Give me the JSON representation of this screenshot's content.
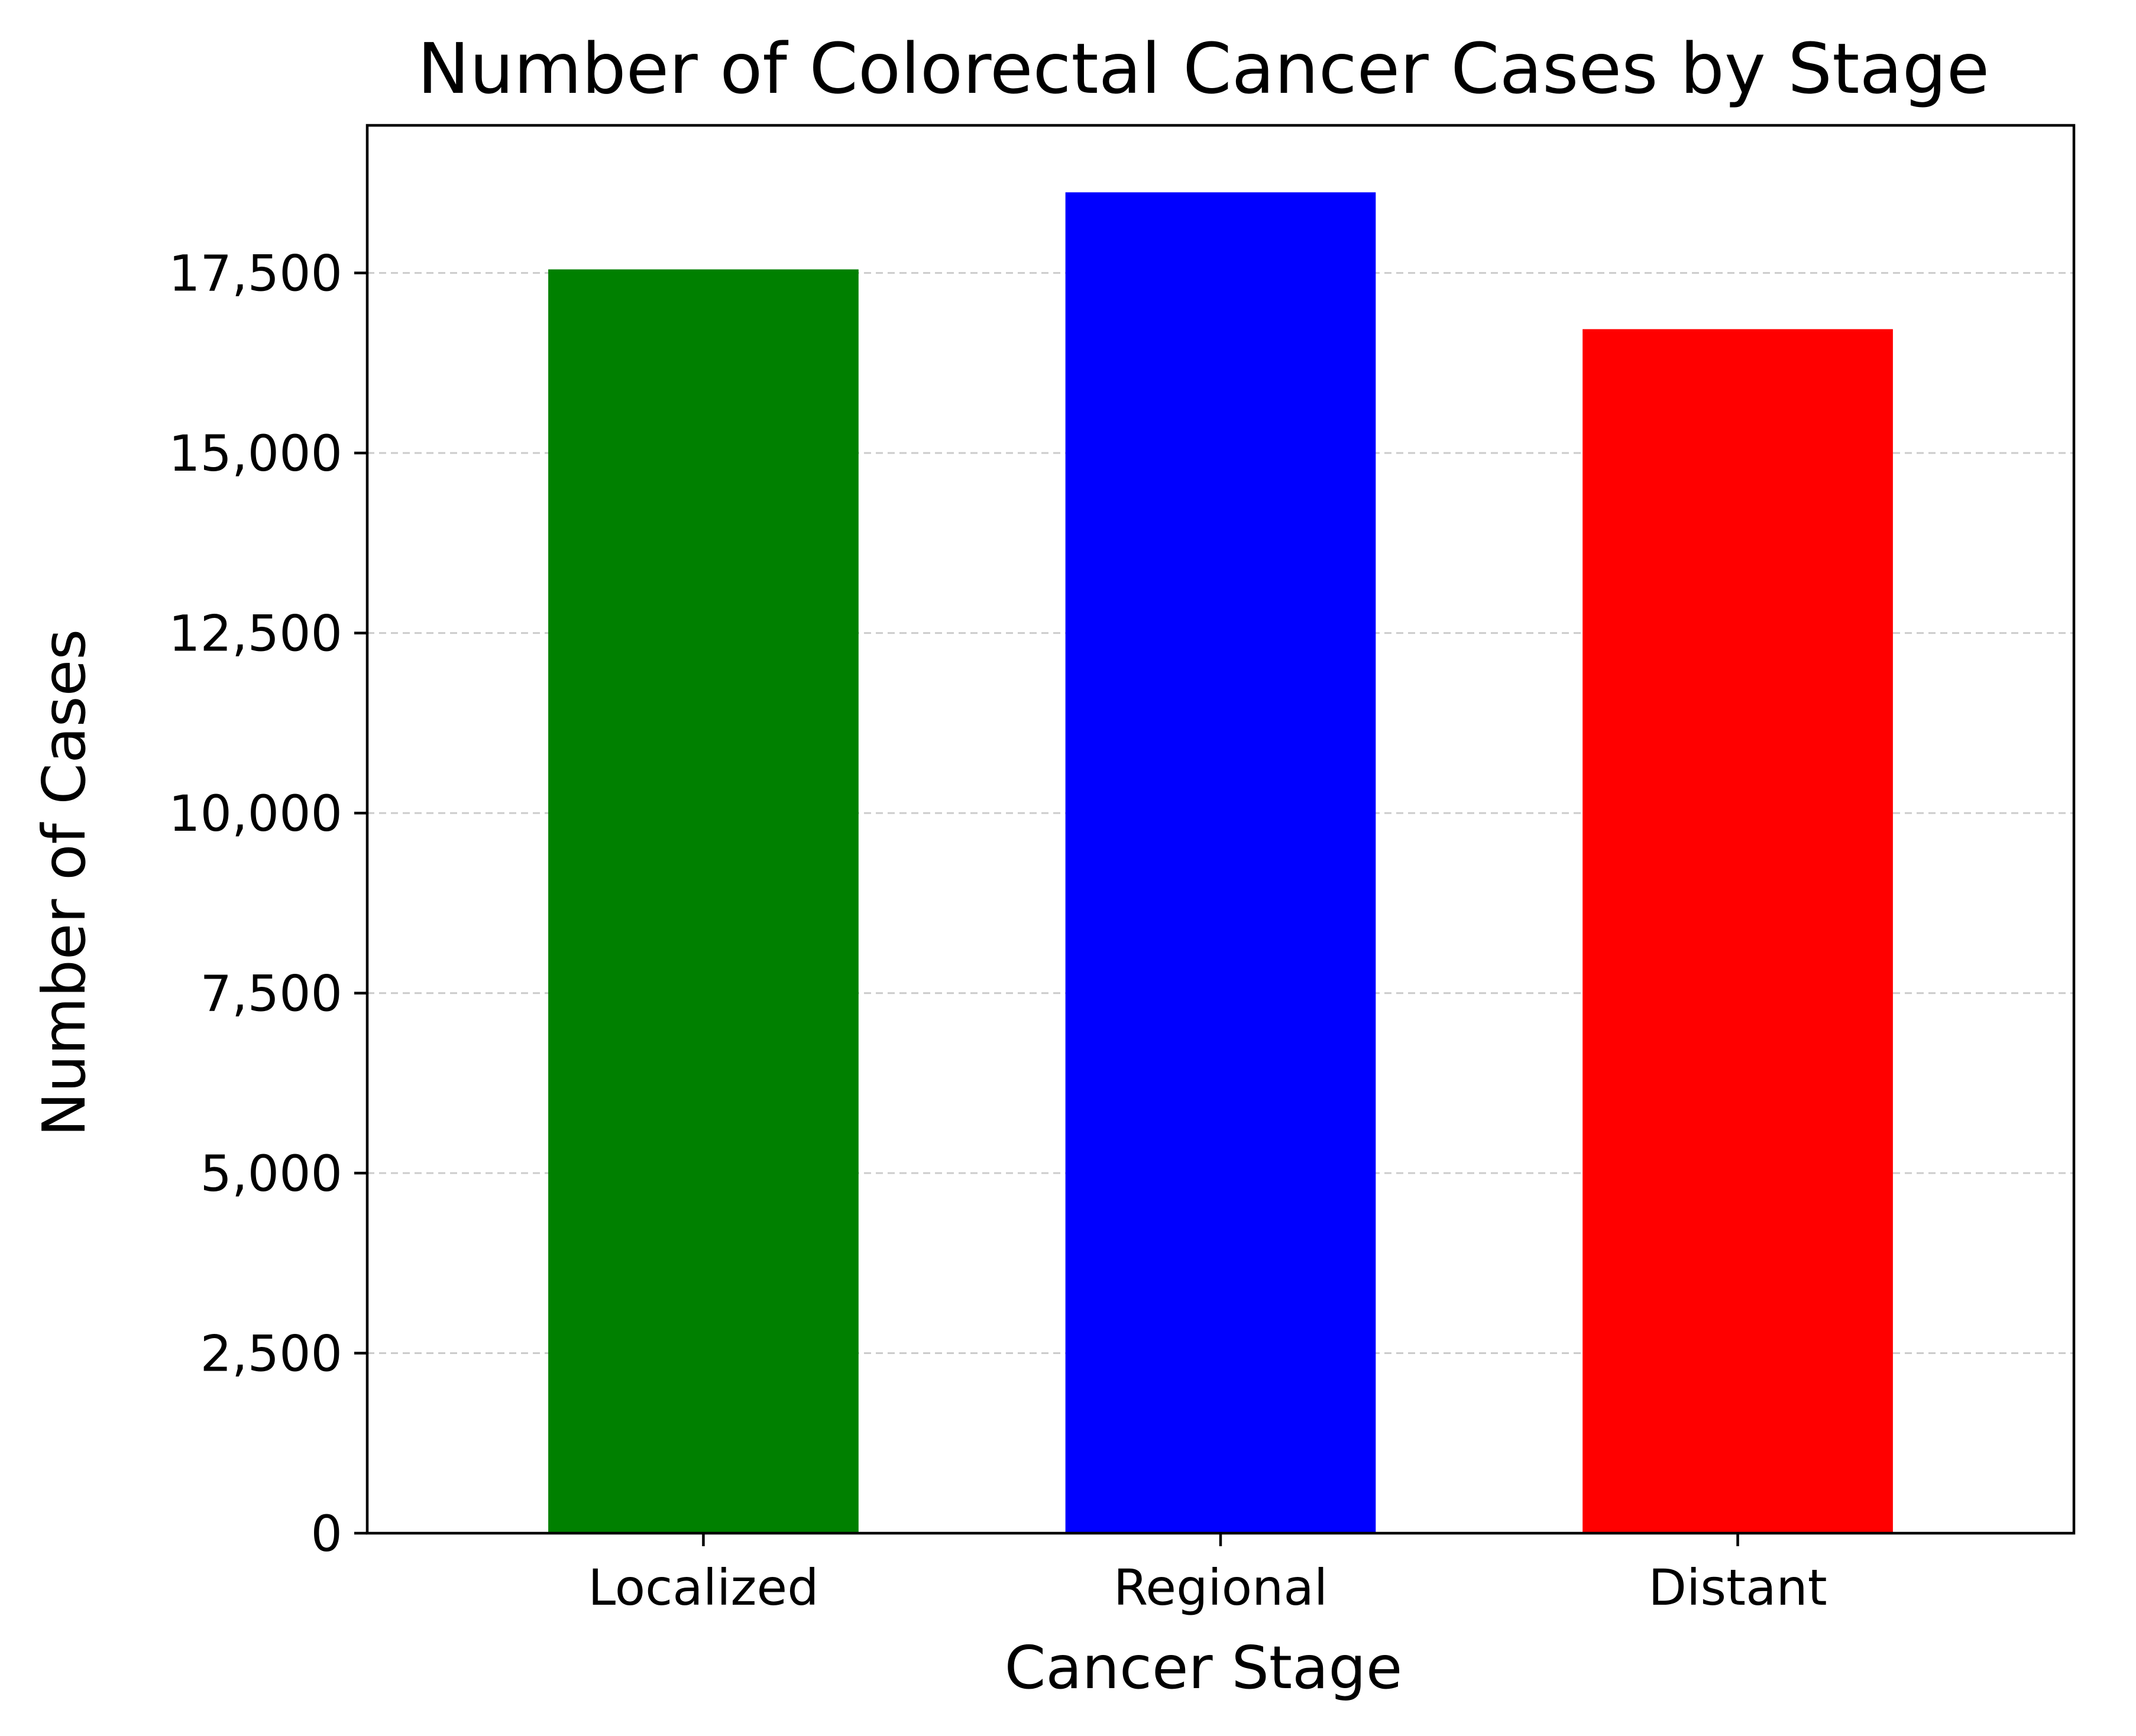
{
  "chart_data": {
    "type": "bar",
    "title": "Number of Colorectal Cancer Cases by Stage",
    "xlabel": "Cancer Stage",
    "ylabel": "Number of Cases",
    "categories": [
      "Localized",
      "Regional",
      "Distant"
    ],
    "values": [
      17550,
      18620,
      16720
    ],
    "colors": [
      "#008000",
      "#0000ff",
      "#ff0000"
    ],
    "ylim": [
      0,
      19550
    ],
    "yticks": [
      0,
      2500,
      5000,
      7500,
      10000,
      12500,
      15000,
      17500
    ],
    "ytick_labels": [
      "0",
      "2,500",
      "5,000",
      "7,500",
      "10,000",
      "12,500",
      "15,000",
      "17,500"
    ],
    "grid": "horizontal dashed",
    "grid_color": "#cccccc",
    "legend": "none"
  }
}
